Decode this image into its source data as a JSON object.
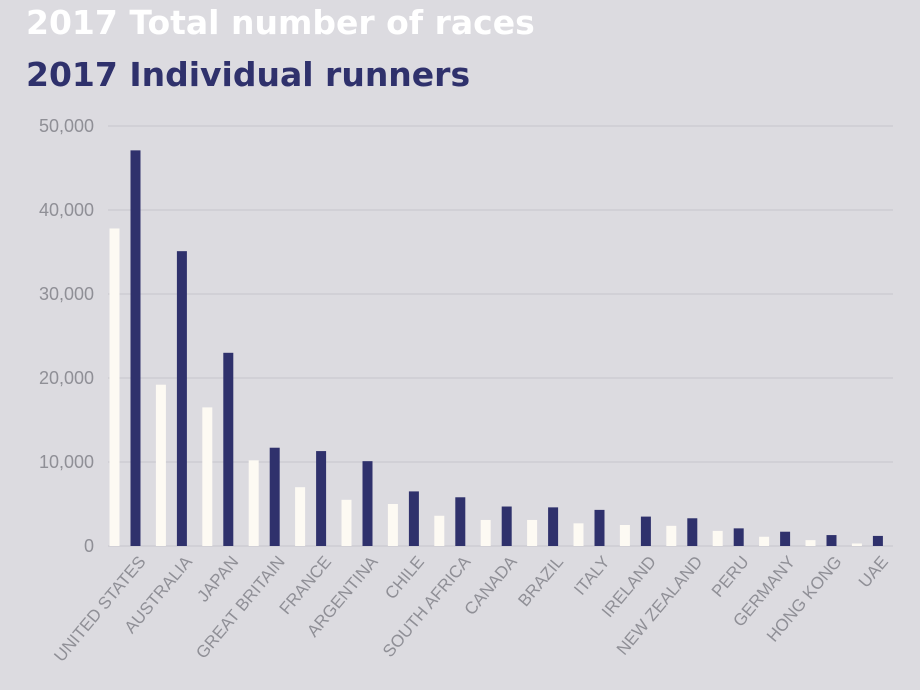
{
  "chart_data": {
    "type": "bar",
    "title": "",
    "xlabel": "",
    "ylabel": "",
    "ylim": [
      0,
      50000
    ],
    "yticks": [
      0,
      10000,
      20000,
      30000,
      40000,
      50000
    ],
    "ytick_labels": [
      "0",
      "10,000",
      "20,000",
      "30,000",
      "40,000",
      "50,000"
    ],
    "grid": true,
    "legend": "top-left",
    "categories": [
      "UNITED STATES",
      "AUSTRALIA",
      "JAPAN",
      "GREAT BRITAIN",
      "FRANCE",
      "ARGENTINA",
      "CHILE",
      "SOUTH AFRICA",
      "CANADA",
      "BRAZIL",
      "ITALY",
      "IRELAND",
      "NEW ZEALAND",
      "PERU",
      "GERMANY",
      "HONG KONG",
      "UAE"
    ],
    "series": [
      {
        "name": "2017 Total number of races",
        "color": "#fdfaf3",
        "values": [
          37800,
          19200,
          16500,
          10200,
          7000,
          5500,
          5000,
          3600,
          3100,
          3100,
          2700,
          2500,
          2400,
          1800,
          1100,
          700,
          300
        ]
      },
      {
        "name": "2017 Individual runners",
        "color": "#2f316c",
        "values": [
          47100,
          35100,
          23000,
          11700,
          11300,
          10100,
          6500,
          5800,
          4700,
          4600,
          4300,
          3500,
          3300,
          2100,
          1700,
          1300,
          1200
        ]
      }
    ]
  }
}
